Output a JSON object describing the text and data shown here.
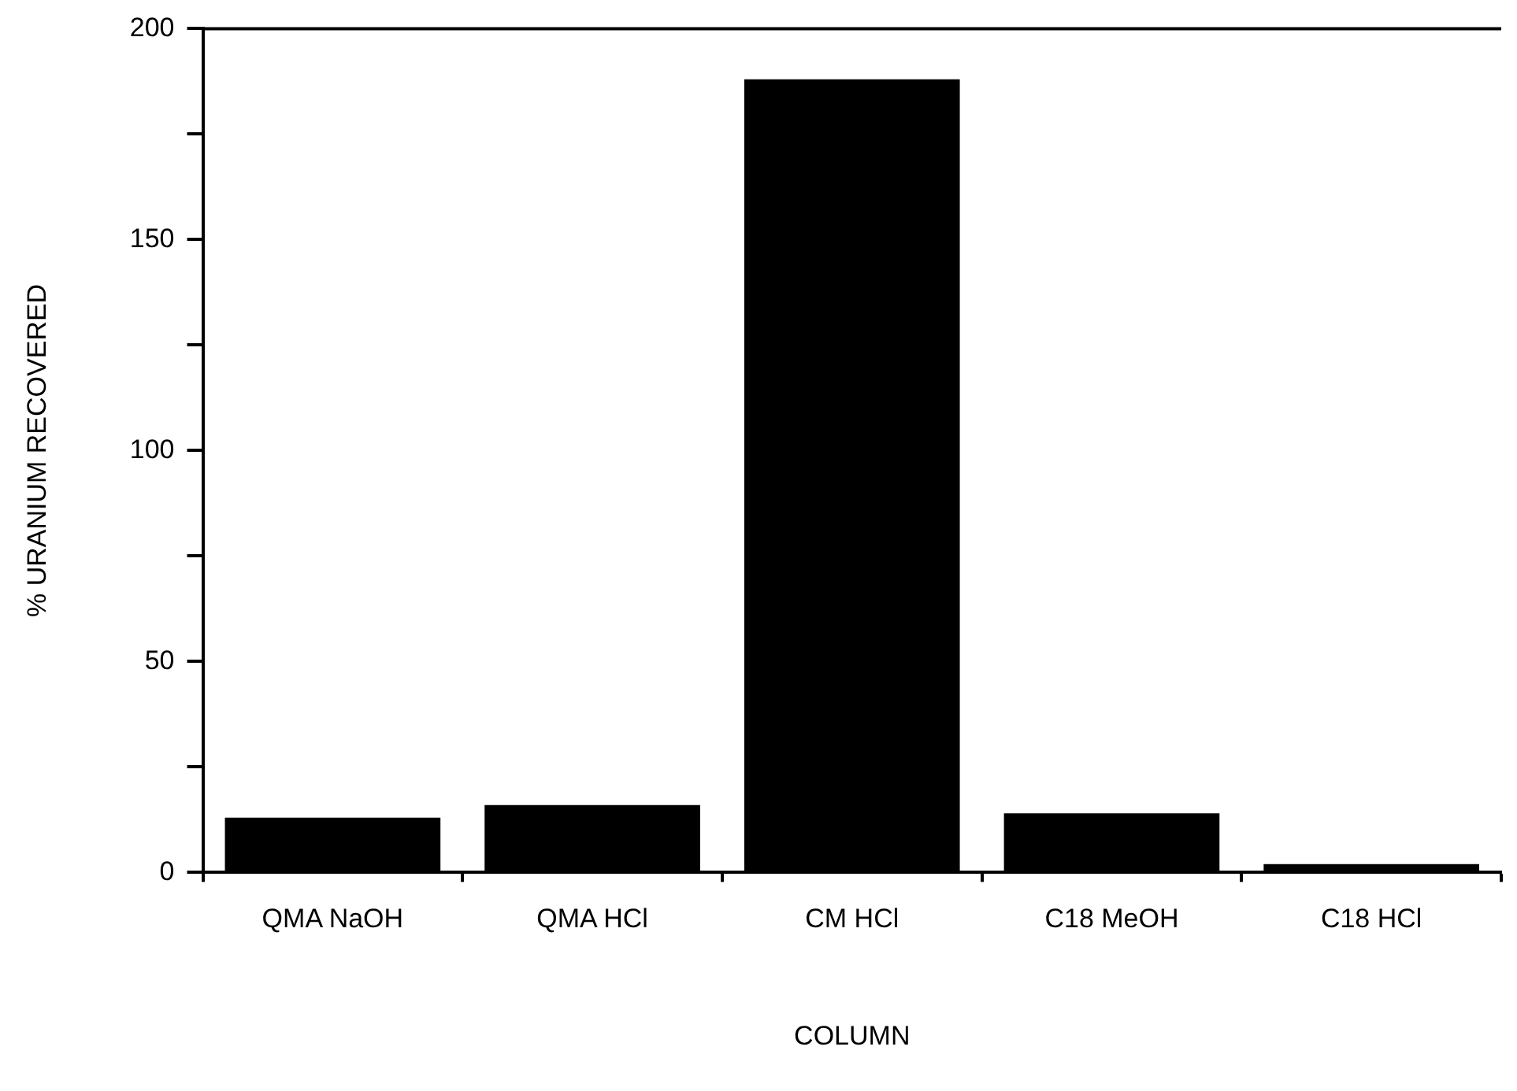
{
  "chart_data": {
    "type": "bar",
    "xlabel": "COLUMN",
    "ylabel": "% URANIUM RECOVERED",
    "categories": [
      "QMA NaOH",
      "QMA HCl",
      "CM HCl",
      "C18 MeOH",
      "C18 HCl"
    ],
    "values": [
      13,
      16,
      188,
      14,
      2
    ],
    "color": "#000000",
    "ylim": [
      0,
      200
    ],
    "yticks": [
      0,
      {
        "value": 25,
        "label": null
      },
      50,
      {
        "value": 75,
        "label": null
      },
      100,
      {
        "value": 125,
        "label": null
      },
      150,
      {
        "value": 175,
        "label": null
      },
      200
    ],
    "grid": false,
    "legend": false
  }
}
